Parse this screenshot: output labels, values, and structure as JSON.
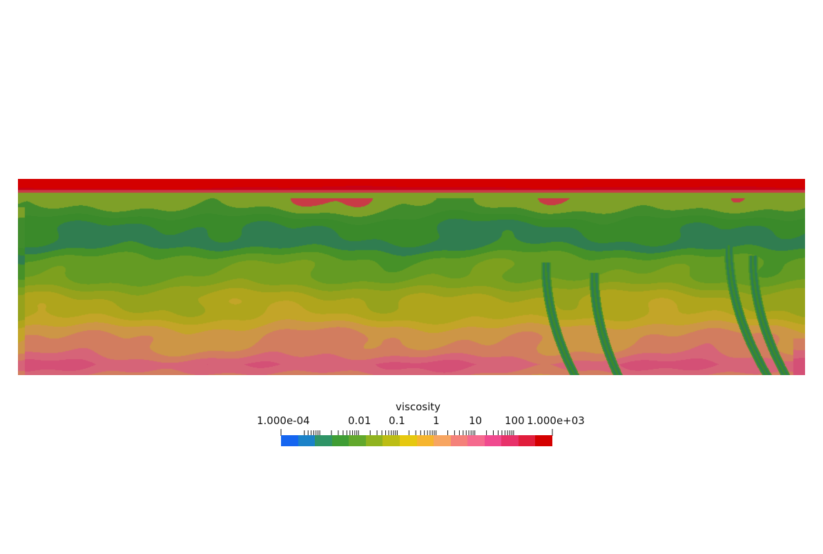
{
  "colorbar": {
    "title": "viscosity",
    "min_label": "1.000e-04",
    "max_label": "1.000e+03",
    "scale": "log",
    "range": [
      0.0001,
      1000
    ],
    "major_ticks": [
      {
        "value": 0.01,
        "label": "0.01"
      },
      {
        "value": 0.1,
        "label": "0.1"
      },
      {
        "value": 1,
        "label": "1"
      },
      {
        "value": 10,
        "label": "10"
      },
      {
        "value": 100,
        "label": "100"
      }
    ],
    "colors": [
      "#1565f0",
      "#1b82c8",
      "#2f9466",
      "#3f9d34",
      "#62a82c",
      "#90b31f",
      "#bcbd14",
      "#e6c80f",
      "#f6b52e",
      "#f7a561",
      "#f4817a",
      "#f56a8e",
      "#f04a8f",
      "#e8326a",
      "#e11d3c",
      "#d40000"
    ]
  },
  "field": {
    "quantity": "viscosity",
    "description_colors": {
      "top_lid": "#c4000b",
      "upper_band": "#3c8a2a",
      "mid_band": "#7aa21f",
      "lower_band": "#c9a82b",
      "bottom_band": "#d6617a"
    }
  }
}
